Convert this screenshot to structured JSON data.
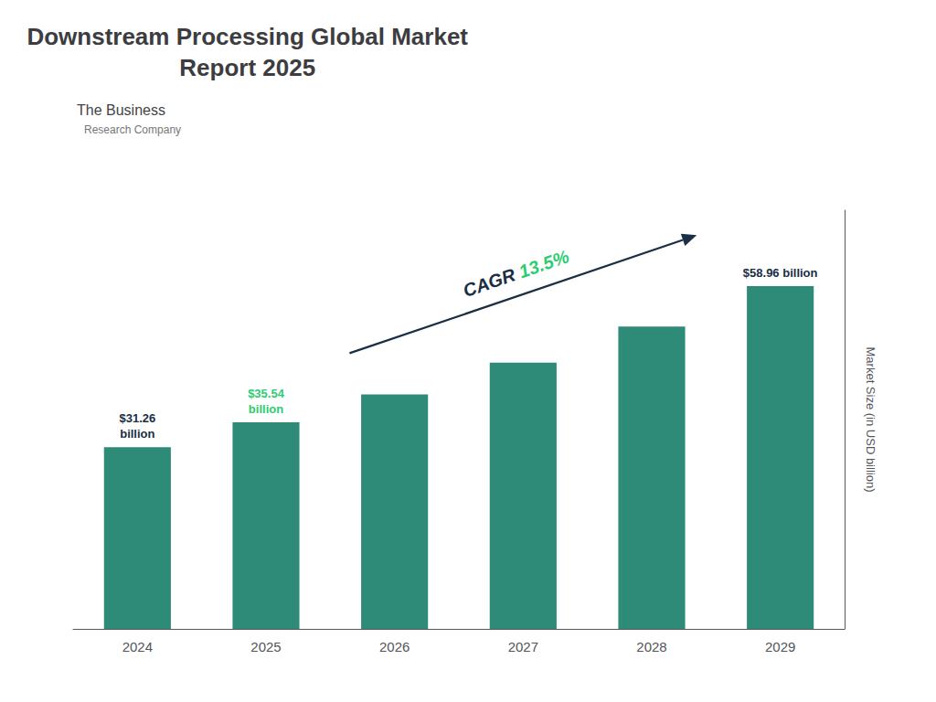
{
  "chart_data": {
    "type": "bar",
    "title": "Downstream Processing Global Market\nReport 2025",
    "ylabel": "Market Size (in USD billion)",
    "categories": [
      "2024",
      "2025",
      "2026",
      "2027",
      "2028",
      "2029"
    ],
    "values": [
      31.26,
      35.54,
      40.34,
      45.78,
      51.98,
      58.96
    ],
    "color": "#2e8b78",
    "ylim": [
      0,
      72
    ],
    "yticks": [],
    "grid": false,
    "tick_labels": "x",
    "annotations": [
      {
        "text": "$31.26\nbillion",
        "x": "2024",
        "y": 31.26,
        "color": "#1a2e44"
      },
      {
        "text": "$35.54\nbillion",
        "x": "2025",
        "y": 35.54,
        "color": "#2ecc71"
      },
      {
        "text": "$58.96 billion",
        "x": "2029",
        "y": 58.96,
        "color": "#1a2e44"
      },
      {
        "text": "CAGR 13.5%",
        "arrow": true,
        "parts": [
          {
            "text": "CAGR ",
            "color": "#1a2e44"
          },
          {
            "text": "13.5%",
            "color": "#2ecc71"
          }
        ]
      },
      {
        "text": "The Business"
      },
      {
        "text": "Research Company"
      }
    ]
  }
}
